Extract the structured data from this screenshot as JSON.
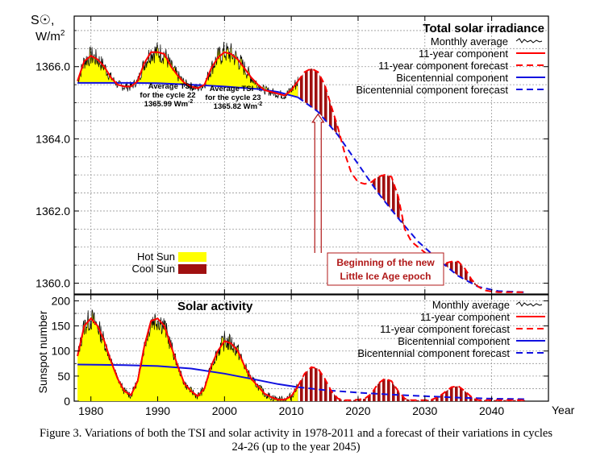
{
  "caption": {
    "line1": "Figure 3. Variations of both the TSI and solar activity in 1978-2011 and a forecast of their variations in cycles",
    "line2": "24-26 (up to the year 2045)"
  },
  "colors": {
    "monthly": "#000000",
    "component11": "#ff0000",
    "bicentennial": "#1010e0",
    "hot_sun": "#ffff00",
    "cool_sun": "#a01010",
    "annotation": "#b01818",
    "grid": "#999999"
  },
  "chart_data": [
    {
      "type": "line",
      "title": "Total solar irradiance",
      "ylabel_line1": "S☉,",
      "ylabel_line2": "W/m",
      "ylabel_sup": "2",
      "yticks": [
        "1366.0",
        "1364.0",
        "1362.0",
        "1360.0"
      ],
      "ylim": [
        1359.7,
        1367.4
      ],
      "xlim": [
        1977.5,
        2048.5
      ],
      "grid": true,
      "legend_position": "top-right",
      "legend": [
        {
          "label": "Monthly average",
          "style": "monthly"
        },
        {
          "label": "11-year component",
          "style": "solid-red"
        },
        {
          "label": "11-year component forecast",
          "style": "dashed-red"
        },
        {
          "label": "Bicentennial component",
          "style": "solid-blue"
        },
        {
          "label": "Bicentennial component forecast",
          "style": "dashed-blue"
        }
      ],
      "fill_legend": [
        {
          "label": "Hot Sun",
          "color": "hot_sun"
        },
        {
          "label": "Cool Sun",
          "color": "cool_sun"
        }
      ],
      "annotations": {
        "cycle22": {
          "line1": "Average TSI",
          "line2": "for the cycle 22",
          "line3": "1365.99 Wm",
          "sup": "-2"
        },
        "cycle23": {
          "line1": "Average TSI",
          "line2": "for the cycle 23",
          "line3": "1365.82 Wm",
          "sup": "-2"
        },
        "epoch": {
          "line1": "Beginning of the new",
          "line2": "Little Ice Age epoch",
          "x": 2014
        }
      },
      "series": [
        {
          "name": "Bicentennial component",
          "x": [
            1978,
            1985,
            1990,
            1995,
            2000,
            2005,
            2008,
            2011
          ],
          "y": [
            1365.55,
            1365.55,
            1365.54,
            1365.5,
            1365.45,
            1365.38,
            1365.3,
            1365.15
          ]
        },
        {
          "name": "Bicentennial component forecast",
          "x": [
            2011,
            2014,
            2017,
            2020,
            2023,
            2026,
            2029,
            2032,
            2035,
            2038,
            2041,
            2045
          ],
          "y": [
            1365.15,
            1364.75,
            1364.1,
            1363.3,
            1362.5,
            1361.8,
            1361.15,
            1360.65,
            1360.2,
            1359.9,
            1359.78,
            1359.75
          ]
        },
        {
          "name": "11-year component",
          "x": [
            1978,
            1979,
            1980,
            1981,
            1982,
            1983,
            1984,
            1985,
            1986,
            1987,
            1988,
            1989,
            1990,
            1991,
            1992,
            1993,
            1994,
            1995,
            1996,
            1997,
            1998,
            1999,
            2000,
            2001,
            2002,
            2003,
            2004,
            2005,
            2006,
            2007,
            2008,
            2009,
            2010,
            2011
          ],
          "y": [
            1365.6,
            1366.15,
            1366.3,
            1366.2,
            1366.0,
            1365.7,
            1365.5,
            1365.45,
            1365.45,
            1365.6,
            1366.1,
            1366.4,
            1366.4,
            1366.35,
            1366.0,
            1365.75,
            1365.55,
            1365.45,
            1365.4,
            1365.5,
            1365.95,
            1366.25,
            1366.4,
            1366.35,
            1366.2,
            1365.95,
            1365.7,
            1365.5,
            1365.35,
            1365.3,
            1365.25,
            1365.2,
            1365.35,
            1365.6
          ]
        },
        {
          "name": "11-year component forecast",
          "x": [
            2011,
            2012,
            2013,
            2014,
            2015,
            2016,
            2017,
            2018,
            2019,
            2020,
            2021,
            2022,
            2023,
            2024,
            2025,
            2026,
            2027,
            2028,
            2029,
            2030,
            2031,
            2032,
            2033,
            2034,
            2035,
            2036,
            2037,
            2038,
            2039,
            2040,
            2041,
            2045
          ],
          "y": [
            1365.6,
            1365.85,
            1365.95,
            1365.85,
            1365.5,
            1364.9,
            1364.3,
            1363.6,
            1363.05,
            1362.8,
            1362.75,
            1362.8,
            1362.95,
            1363.0,
            1362.95,
            1362.4,
            1361.5,
            1361.15,
            1361.0,
            1360.85,
            1360.6,
            1360.5,
            1360.55,
            1360.6,
            1360.6,
            1360.4,
            1360.1,
            1359.9,
            1359.8,
            1359.77,
            1359.75,
            1359.75
          ]
        }
      ]
    },
    {
      "type": "line",
      "title": "Solar activity",
      "ylabel": "Sunspot number",
      "xlabel": "Year",
      "xticks": [
        1980,
        1990,
        2000,
        2010,
        2020,
        2030,
        2040
      ],
      "yticks": [
        0,
        50,
        100,
        150,
        200
      ],
      "ylim": [
        0,
        212
      ],
      "xlim": [
        1977.5,
        2048.5
      ],
      "grid": true,
      "legend_position": "top-right",
      "legend": [
        {
          "label": "Monthly average",
          "style": "monthly"
        },
        {
          "label": "11-year component",
          "style": "solid-red"
        },
        {
          "label": "11-year component forecast",
          "style": "dashed-red"
        },
        {
          "label": "Bicentennial component",
          "style": "solid-blue"
        },
        {
          "label": "Bicentennial component forecast",
          "style": "dashed-blue"
        }
      ],
      "series": [
        {
          "name": "Bicentennial component",
          "x": [
            1978,
            1985,
            1990,
            1995,
            2000,
            2005,
            2008,
            2011
          ],
          "y": [
            73,
            72,
            70,
            65,
            55,
            42,
            34,
            28
          ]
        },
        {
          "name": "Bicentennial component forecast",
          "x": [
            2011,
            2015,
            2020,
            2025,
            2030,
            2035,
            2040,
            2045
          ],
          "y": [
            28,
            22,
            17,
            13,
            10,
            7,
            5,
            4
          ]
        },
        {
          "name": "11-year component",
          "x": [
            1978,
            1979,
            1980,
            1981,
            1982,
            1983,
            1984,
            1985,
            1986,
            1987,
            1988,
            1989,
            1990,
            1991,
            1992,
            1993,
            1994,
            1995,
            1996,
            1997,
            1998,
            1999,
            2000,
            2001,
            2002,
            2003,
            2004,
            2005,
            2006,
            2007,
            2008,
            2009,
            2010,
            2011
          ],
          "y": [
            90,
            150,
            165,
            150,
            120,
            80,
            45,
            20,
            12,
            40,
            110,
            160,
            165,
            150,
            110,
            70,
            35,
            20,
            10,
            25,
            70,
            100,
            120,
            115,
            100,
            70,
            45,
            30,
            15,
            8,
            3,
            3,
            10,
            30
          ]
        },
        {
          "name": "11-year component forecast",
          "x": [
            2011,
            2012,
            2013,
            2014,
            2015,
            2016,
            2017,
            2018,
            2019,
            2020,
            2021,
            2022,
            2023,
            2024,
            2025,
            2026,
            2027,
            2028,
            2029,
            2030,
            2031,
            2032,
            2033,
            2034,
            2035,
            2036,
            2037,
            2038,
            2040,
            2045
          ],
          "y": [
            30,
            55,
            68,
            65,
            45,
            20,
            5,
            2,
            2,
            3,
            5,
            15,
            35,
            45,
            40,
            20,
            5,
            2,
            2,
            2,
            3,
            8,
            18,
            28,
            30,
            20,
            8,
            2,
            2,
            2
          ]
        }
      ]
    }
  ]
}
